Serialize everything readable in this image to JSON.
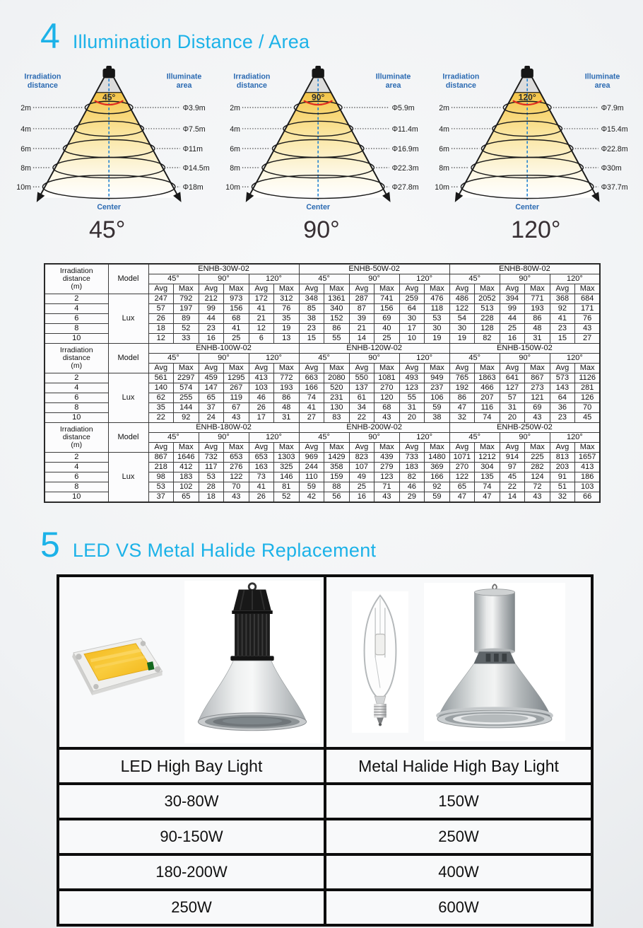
{
  "section4": {
    "number": "4",
    "title": "Illumination Distance / Area",
    "accent_color": "#1cb2e8",
    "left_label": "Irradiation\ndistance",
    "right_label": "Illuminate\narea",
    "center_label": "Center",
    "cones": [
      {
        "angle": "45°",
        "distances": [
          "2m",
          "4m",
          "6m",
          "8m",
          "10m"
        ],
        "areas": [
          "Φ3.9m",
          "Φ7.5m",
          "Φ11m",
          "Φ14.5m",
          "Φ18m"
        ]
      },
      {
        "angle": "90°",
        "distances": [
          "2m",
          "4m",
          "6m",
          "8m",
          "10m"
        ],
        "areas": [
          "Φ5.9m",
          "Φ11.4m",
          "Φ16.9m",
          "Φ22.3m",
          "Φ27.8m"
        ]
      },
      {
        "angle": "120°",
        "distances": [
          "2m",
          "4m",
          "6m",
          "8m",
          "10m"
        ],
        "areas": [
          "Φ7.9m",
          "Φ15.4m",
          "Φ22.8m",
          "Φ30m",
          "Φ37.7m"
        ]
      }
    ],
    "big_angle_labels": [
      "45°",
      "90°",
      "120°"
    ]
  },
  "lux_table": {
    "header": {
      "col1": "Irradiation\ndistance\n(m)",
      "col2": "Model",
      "angles": [
        "45°",
        "90°",
        "120°"
      ],
      "avg": "Avg",
      "max": "Max",
      "lux_label": "Lux"
    },
    "distances": [
      "2",
      "4",
      "6",
      "8",
      "10"
    ],
    "blocks": [
      {
        "models": [
          {
            "name": "ENHB-30W-02",
            "rows": [
              [
                247,
                792,
                212,
                973,
                172,
                312
              ],
              [
                57,
                197,
                99,
                156,
                41,
                76
              ],
              [
                26,
                89,
                44,
                68,
                21,
                35
              ],
              [
                18,
                52,
                23,
                41,
                12,
                19
              ],
              [
                12,
                33,
                16,
                25,
                6,
                13
              ]
            ]
          },
          {
            "name": "ENHB-50W-02",
            "rows": [
              [
                348,
                1361,
                287,
                741,
                259,
                476
              ],
              [
                85,
                340,
                87,
                156,
                64,
                118
              ],
              [
                38,
                152,
                39,
                69,
                30,
                53
              ],
              [
                23,
                86,
                21,
                40,
                17,
                30
              ],
              [
                15,
                55,
                14,
                25,
                10,
                19
              ]
            ]
          },
          {
            "name": "ENHB-80W-02",
            "rows": [
              [
                486,
                2052,
                394,
                771,
                368,
                684
              ],
              [
                122,
                513,
                99,
                193,
                92,
                171
              ],
              [
                54,
                228,
                44,
                86,
                41,
                76
              ],
              [
                30,
                128,
                25,
                48,
                23,
                43
              ],
              [
                19,
                82,
                16,
                31,
                15,
                27
              ]
            ]
          }
        ]
      },
      {
        "models": [
          {
            "name": "ENHB-100W-02",
            "rows": [
              [
                561,
                2297,
                459,
                1295,
                413,
                772
              ],
              [
                140,
                574,
                147,
                267,
                103,
                193
              ],
              [
                62,
                255,
                65,
                119,
                46,
                86
              ],
              [
                35,
                144,
                37,
                67,
                26,
                48
              ],
              [
                22,
                92,
                24,
                43,
                17,
                31
              ]
            ]
          },
          {
            "name": "ENHB-120W-02",
            "rows": [
              [
                663,
                2080,
                550,
                1081,
                493,
                949
              ],
              [
                166,
                520,
                137,
                270,
                123,
                237
              ],
              [
                74,
                231,
                61,
                120,
                55,
                106
              ],
              [
                41,
                130,
                34,
                68,
                31,
                59
              ],
              [
                27,
                83,
                22,
                43,
                20,
                38
              ]
            ]
          },
          {
            "name": "ENHB-150W-02",
            "rows": [
              [
                765,
                1863,
                641,
                867,
                573,
                1126
              ],
              [
                192,
                466,
                127,
                273,
                143,
                281
              ],
              [
                86,
                207,
                57,
                121,
                64,
                126
              ],
              [
                47,
                116,
                31,
                69,
                36,
                70
              ],
              [
                32,
                74,
                20,
                43,
                23,
                45
              ]
            ]
          }
        ]
      },
      {
        "models": [
          {
            "name": "ENHB-180W-02",
            "rows": [
              [
                867,
                1646,
                732,
                653,
                653,
                1303
              ],
              [
                218,
                412,
                117,
                276,
                163,
                325
              ],
              [
                98,
                183,
                53,
                122,
                73,
                146
              ],
              [
                53,
                102,
                28,
                70,
                41,
                81
              ],
              [
                37,
                65,
                18,
                43,
                26,
                52
              ]
            ]
          },
          {
            "name": "ENHB-200W-02",
            "rows": [
              [
                969,
                1429,
                823,
                439,
                733,
                1480
              ],
              [
                244,
                358,
                107,
                279,
                183,
                369
              ],
              [
                110,
                159,
                49,
                123,
                82,
                166
              ],
              [
                59,
                88,
                25,
                71,
                46,
                92
              ],
              [
                42,
                56,
                16,
                43,
                29,
                59
              ]
            ]
          },
          {
            "name": "ENHB-250W-02",
            "rows": [
              [
                1071,
                1212,
                914,
                225,
                813,
                1657
              ],
              [
                270,
                304,
                97,
                282,
                203,
                413
              ],
              [
                122,
                135,
                45,
                124,
                91,
                186
              ],
              [
                65,
                74,
                22,
                72,
                51,
                103
              ],
              [
                47,
                47,
                14,
                43,
                32,
                66
              ]
            ]
          }
        ]
      }
    ]
  },
  "section5": {
    "number": "5",
    "title": "LED VS Metal Halide Replacement"
  },
  "comparison": {
    "headers": [
      "LED High Bay Light",
      "Metal Halide High Bay Light"
    ],
    "rows": [
      {
        "led": "30-80W",
        "mh": "150W"
      },
      {
        "led": "90-150W",
        "mh": "250W"
      },
      {
        "led": "180-200W",
        "mh": "400W"
      },
      {
        "led": "250W",
        "mh": "600W"
      }
    ],
    "images": {
      "led_chip": "led-cob-chip",
      "led_lamp": "led-high-bay-light",
      "mh_bulb": "metal-halide-bulb",
      "mh_lamp": "metal-halide-high-bay-light"
    }
  }
}
